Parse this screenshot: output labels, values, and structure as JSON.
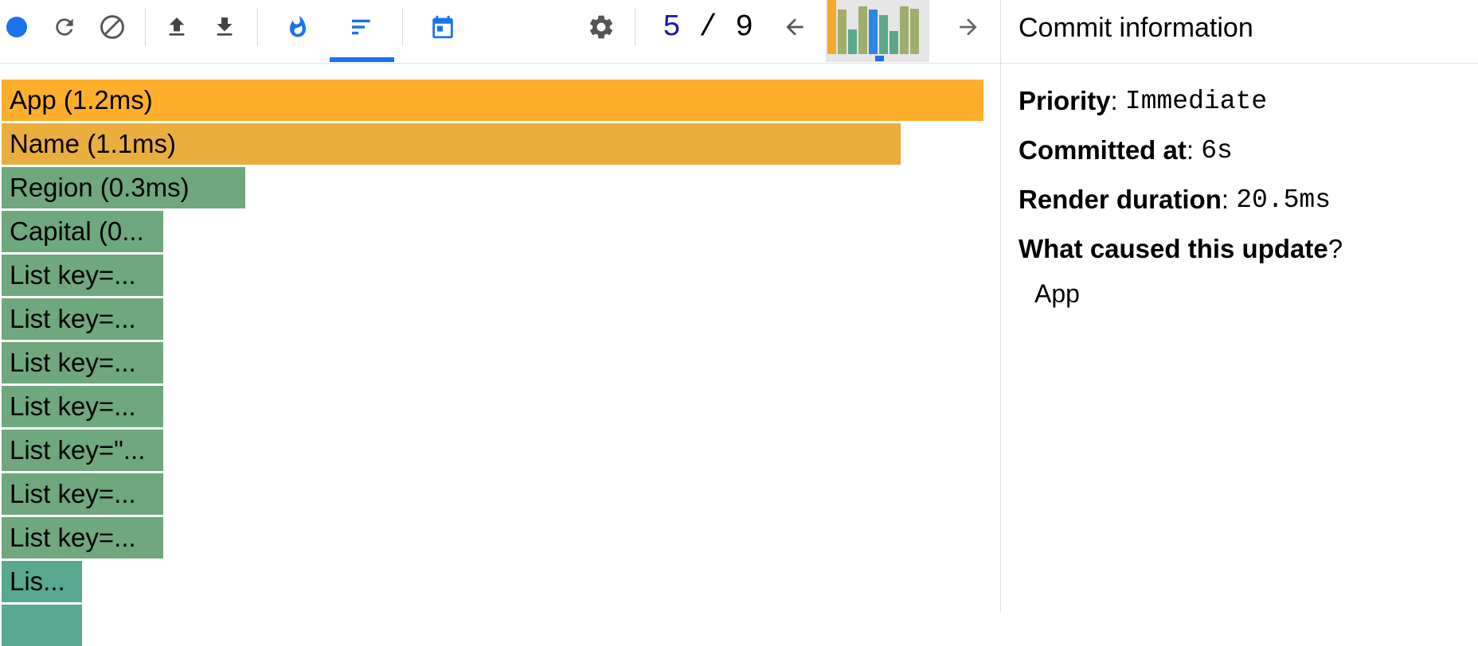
{
  "colors": {
    "accent": "#1a73e8",
    "root_bar": "#ffae2c",
    "name_bar": "#eaae3e",
    "green_bar": "#6ea87c",
    "teal_bar": "#59a890"
  },
  "toolbar": {
    "icons": [
      "record-icon",
      "reload-icon",
      "clear-icon",
      "load-profile-icon",
      "save-profile-icon",
      "flamegraph-icon",
      "ranked-chart-icon",
      "timeline-icon",
      "settings-icon",
      "previous-commit-icon",
      "next-commit-icon"
    ],
    "commit_current": "5",
    "commit_separator": " / ",
    "commit_total": "9",
    "snapshot_bars": [
      {
        "color": "#f4a92a",
        "level": 1.0
      },
      {
        "color": "#9fae6a",
        "level": 0.82
      },
      {
        "color": "#5aa88a",
        "level": 0.45
      },
      {
        "color": "#9fae6a",
        "level": 0.88
      },
      {
        "color": "#2d86e6",
        "level": 0.82
      },
      {
        "color": "#5aa88a",
        "level": 0.72
      },
      {
        "color": "#5aa88a",
        "level": 0.42
      },
      {
        "color": "#9fae6a",
        "level": 0.88
      },
      {
        "color": "#9fae6a",
        "level": 0.84
      }
    ]
  },
  "flame": [
    {
      "label": "App (1.2ms)",
      "color": "#ffae2c",
      "fraction": 1.0
    },
    {
      "label": "Name (1.1ms)",
      "color": "#eaae3e",
      "fraction": 0.916
    },
    {
      "label": "Region (0.3ms)",
      "color": "#6ea87c",
      "fraction": 0.248
    },
    {
      "label": "Capital (0...",
      "color": "#6ea87c",
      "fraction": 0.165
    },
    {
      "label": "List key=...",
      "color": "#6ea87c",
      "fraction": 0.165
    },
    {
      "label": "List key=...",
      "color": "#6ea87c",
      "fraction": 0.165
    },
    {
      "label": "List key=...",
      "color": "#6ea87c",
      "fraction": 0.165
    },
    {
      "label": "List key=...",
      "color": "#6ea87c",
      "fraction": 0.165
    },
    {
      "label": "List key=\"...",
      "color": "#6ea87c",
      "fraction": 0.165
    },
    {
      "label": "List key=...",
      "color": "#6ea87c",
      "fraction": 0.165
    },
    {
      "label": "List key=...",
      "color": "#6ea87c",
      "fraction": 0.165
    },
    {
      "label": "Lis...",
      "color": "#59a890",
      "fraction": 0.082
    },
    {
      "label": "",
      "color": "#59a890",
      "fraction": 0.082
    }
  ],
  "sidebar": {
    "title": "Commit information",
    "priority_label": "Priority",
    "priority_value": "Immediate",
    "committed_label": "Committed at",
    "committed_value": "6s",
    "duration_label": "Render duration",
    "duration_value": "20.5ms",
    "cause_label": "What caused this update",
    "cause_mark": "?",
    "colon": ": ",
    "cause_value": "App"
  }
}
